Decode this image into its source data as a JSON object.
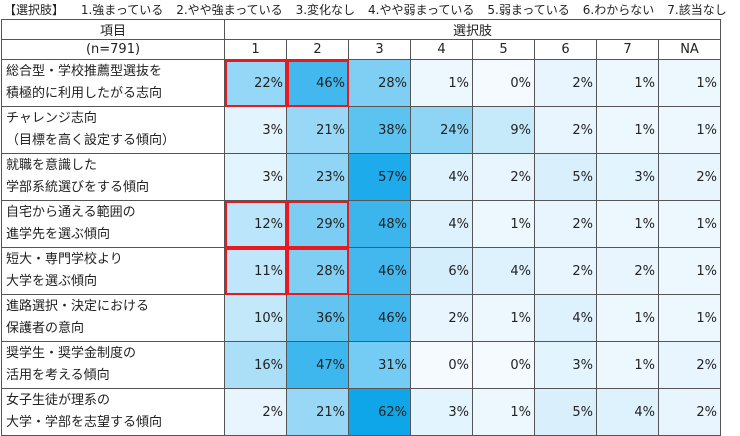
{
  "legend": {
    "title": "【選択肢】",
    "options": [
      "1.強まっている",
      "2.やや強まっている",
      "3.変化なし",
      "4.やや弱まっている",
      "5.弱まっている",
      "6.わからない",
      "7.該当なし"
    ]
  },
  "header": {
    "item": "項目",
    "n": "(n=791)",
    "choices": "選択肢",
    "columns": [
      "1",
      "2",
      "3",
      "4",
      "5",
      "6",
      "7",
      "NA"
    ]
  },
  "colors": {
    "low": "#f4faff",
    "high": "#0ea5e9",
    "highlight": "#e8191f"
  },
  "chart_data": {
    "type": "heatmap",
    "title": "",
    "columns": [
      "1",
      "2",
      "3",
      "4",
      "5",
      "6",
      "7",
      "NA"
    ],
    "rows": [
      {
        "label": "総合型・学校推薦型選抜を\n積極的に利用したがる志向",
        "values": [
          22,
          46,
          28,
          1,
          0,
          2,
          1,
          1
        ],
        "highlight": [
          0,
          1
        ]
      },
      {
        "label": "チャレンジ志向\n（目標を高く設定する傾向）",
        "values": [
          3,
          21,
          38,
          24,
          9,
          2,
          1,
          1
        ],
        "highlight": []
      },
      {
        "label": "就職を意識した\n学部系統選びをする傾向",
        "values": [
          3,
          23,
          57,
          4,
          2,
          5,
          3,
          2
        ],
        "highlight": []
      },
      {
        "label": "自宅から通える範囲の\n進学先を選ぶ傾向",
        "values": [
          12,
          29,
          48,
          4,
          1,
          2,
          1,
          1
        ],
        "highlight": [
          0,
          1
        ]
      },
      {
        "label": "短大・専門学校より\n大学を選ぶ傾向",
        "values": [
          11,
          28,
          46,
          6,
          4,
          2,
          2,
          1
        ],
        "highlight": [
          0,
          1
        ]
      },
      {
        "label": "進路選択・決定における\n保護者の意向",
        "values": [
          10,
          36,
          46,
          2,
          1,
          4,
          1,
          1
        ],
        "highlight": []
      },
      {
        "label": "奨学生・奨学金制度の\n活用を考える傾向",
        "values": [
          16,
          47,
          31,
          0,
          0,
          3,
          1,
          2
        ],
        "highlight": []
      },
      {
        "label": "女子生徒が理系の\n大学・学部を志望する傾向",
        "values": [
          2,
          21,
          62,
          3,
          1,
          5,
          4,
          2
        ],
        "highlight": []
      }
    ],
    "unit": "%"
  }
}
